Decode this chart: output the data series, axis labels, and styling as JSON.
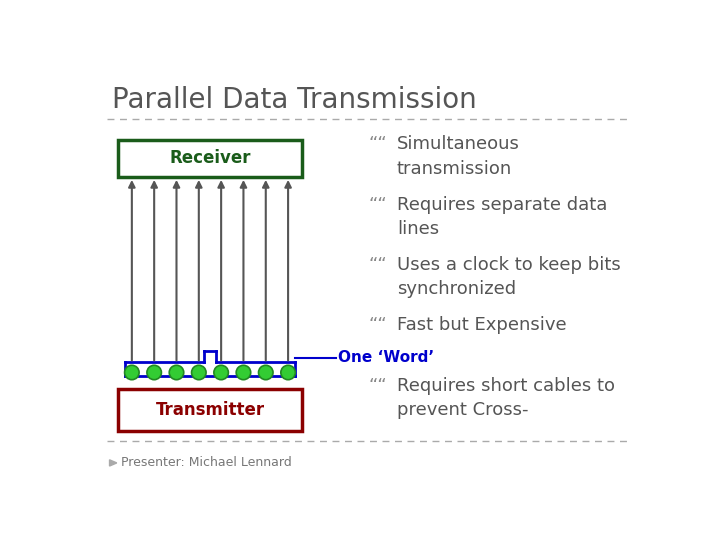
{
  "title": "Parallel Data Transmission",
  "bg_color": "#ffffff",
  "title_color": "#555555",
  "title_fontsize": 20,
  "receiver_label": "Receiver",
  "transmitter_label": "Transmitter",
  "one_word_label": "One ‘Word’",
  "bullet_char": "““",
  "bullets": [
    [
      "Simultaneous",
      "transmission"
    ],
    [
      "Requires separate data",
      "lines"
    ],
    [
      "Uses a clock to keep bits",
      "synchronized"
    ],
    [
      "Fast but Expensive"
    ],
    [
      "Requires short cables to",
      "prevent Cross-"
    ]
  ],
  "presenter": "Presenter: Michael Lennard",
  "n_lines": 8,
  "receiver_box_color": "#1a5c1a",
  "receiver_text_color": "#1a5c1a",
  "transmitter_box_color": "#8b0000",
  "transmitter_text_color": "#8b0000",
  "arrow_color": "#555555",
  "circle_color": "#33cc33",
  "circle_edge_color": "#228822",
  "one_word_color": "#0000cc",
  "line_color": "#0000cc",
  "separator_color": "#aaaaaa",
  "bullet_color": "#555555",
  "bullet_char_color": "#888888"
}
